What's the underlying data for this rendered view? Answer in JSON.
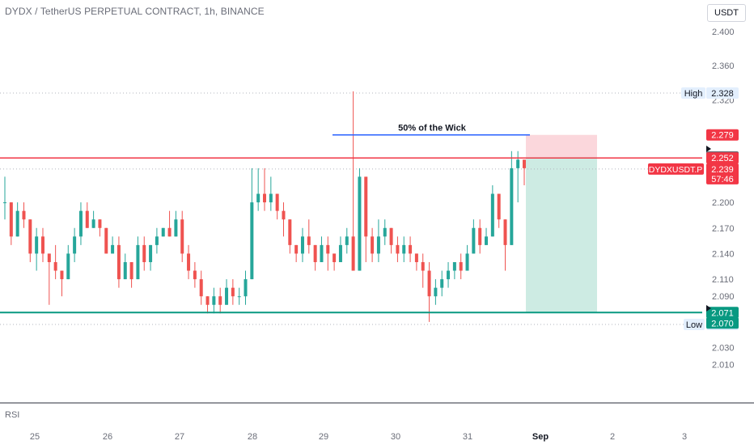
{
  "header": {
    "title": "DYDX / TetherUS PERPETUAL CONTRACT, 1h, BINANCE",
    "currency_button": "USDT"
  },
  "indicator_label": "RSI",
  "colors": {
    "up": "#26a69a",
    "down": "#ef5350",
    "resistance": "#f23645",
    "support": "#089981",
    "wick_line": "#2962ff",
    "stop_zone": "#fbd7dc",
    "target_zone": "#cdebe3",
    "axis_text": "#6a6d78",
    "grid_dot": "#b2b5be"
  },
  "chart_data": {
    "type": "candlestick",
    "symbol": "DYDXUSDT.P",
    "timeframe": "1h",
    "y_ticks": [
      "2.400",
      "2.360",
      "2.320",
      "2.200",
      "2.170",
      "2.140",
      "2.110",
      "2.090",
      "2.030",
      "2.010"
    ],
    "x_ticks": [
      "25",
      "26",
      "27",
      "28",
      "29",
      "30",
      "31",
      "Sep",
      "2",
      "3"
    ],
    "ylim": [
      2.0,
      2.41
    ],
    "annotations": {
      "wick_label": "50% of the Wick",
      "wick_level": 2.279
    },
    "levels": {
      "high": {
        "label": "High",
        "value": "2.328"
      },
      "low": {
        "label": "Low",
        "value": "2.057"
      },
      "resistance": "2.252",
      "support": "2.071",
      "support_alt": "2.070",
      "stop": "2.279",
      "entry": "2.253",
      "current": {
        "symbol": "DYDXUSDT.P",
        "price": "2.239",
        "countdown": "57:46"
      }
    },
    "position": {
      "entry": 2.253,
      "stop": 2.279,
      "target": 2.071
    },
    "candles": [
      [
        2.2,
        2.2,
        2.18,
        2.23
      ],
      [
        2.2,
        2.16,
        2.15,
        2.2
      ],
      [
        2.16,
        2.19,
        2.16,
        2.2
      ],
      [
        2.19,
        2.18,
        2.17,
        2.2
      ],
      [
        2.18,
        2.14,
        2.13,
        2.18
      ],
      [
        2.14,
        2.16,
        2.12,
        2.17
      ],
      [
        2.16,
        2.14,
        2.13,
        2.17
      ],
      [
        2.14,
        2.13,
        2.08,
        2.14
      ],
      [
        2.13,
        2.12,
        2.11,
        2.15
      ],
      [
        2.12,
        2.11,
        2.09,
        2.12
      ],
      [
        2.11,
        2.14,
        2.11,
        2.15
      ],
      [
        2.14,
        2.16,
        2.13,
        2.17
      ],
      [
        2.16,
        2.19,
        2.15,
        2.2
      ],
      [
        2.19,
        2.17,
        2.17,
        2.2
      ],
      [
        2.17,
        2.18,
        2.17,
        2.19
      ],
      [
        2.18,
        2.17,
        2.16,
        2.18
      ],
      [
        2.17,
        2.14,
        2.14,
        2.17
      ],
      [
        2.14,
        2.15,
        2.14,
        2.16
      ],
      [
        2.15,
        2.11,
        2.1,
        2.16
      ],
      [
        2.11,
        2.13,
        2.11,
        2.14
      ],
      [
        2.13,
        2.11,
        2.1,
        2.13
      ],
      [
        2.11,
        2.15,
        2.11,
        2.16
      ],
      [
        2.15,
        2.13,
        2.12,
        2.16
      ],
      [
        2.13,
        2.15,
        2.12,
        2.15
      ],
      [
        2.15,
        2.16,
        2.14,
        2.17
      ],
      [
        2.16,
        2.17,
        2.16,
        2.17
      ],
      [
        2.17,
        2.16,
        2.16,
        2.19
      ],
      [
        2.16,
        2.18,
        2.16,
        2.19
      ],
      [
        2.18,
        2.14,
        2.13,
        2.19
      ],
      [
        2.14,
        2.12,
        2.11,
        2.15
      ],
      [
        2.12,
        2.11,
        2.1,
        2.13
      ],
      [
        2.11,
        2.09,
        2.08,
        2.12
      ],
      [
        2.09,
        2.08,
        2.07,
        2.09
      ],
      [
        2.08,
        2.09,
        2.07,
        2.1
      ],
      [
        2.09,
        2.08,
        2.07,
        2.1
      ],
      [
        2.08,
        2.1,
        2.08,
        2.11
      ],
      [
        2.1,
        2.09,
        2.08,
        2.11
      ],
      [
        2.09,
        2.09,
        2.08,
        2.1
      ],
      [
        2.09,
        2.11,
        2.08,
        2.12
      ],
      [
        2.11,
        2.2,
        2.11,
        2.24
      ],
      [
        2.2,
        2.21,
        2.19,
        2.24
      ],
      [
        2.21,
        2.2,
        2.19,
        2.24
      ],
      [
        2.2,
        2.21,
        2.19,
        2.23
      ],
      [
        2.21,
        2.19,
        2.18,
        2.21
      ],
      [
        2.19,
        2.18,
        2.16,
        2.2
      ],
      [
        2.18,
        2.15,
        2.14,
        2.18
      ],
      [
        2.15,
        2.14,
        2.13,
        2.15
      ],
      [
        2.14,
        2.16,
        2.13,
        2.17
      ],
      [
        2.16,
        2.15,
        2.14,
        2.18
      ],
      [
        2.15,
        2.13,
        2.12,
        2.15
      ],
      [
        2.13,
        2.15,
        2.13,
        2.16
      ],
      [
        2.15,
        2.14,
        2.12,
        2.16
      ],
      [
        2.14,
        2.13,
        2.12,
        2.14
      ],
      [
        2.13,
        2.15,
        2.13,
        2.16
      ],
      [
        2.15,
        2.16,
        2.14,
        2.17
      ],
      [
        2.16,
        2.12,
        2.12,
        2.33
      ],
      [
        2.12,
        2.23,
        2.12,
        2.24
      ],
      [
        2.23,
        2.16,
        2.13,
        2.23
      ],
      [
        2.16,
        2.14,
        2.13,
        2.17
      ],
      [
        2.14,
        2.16,
        2.13,
        2.18
      ],
      [
        2.16,
        2.17,
        2.15,
        2.18
      ],
      [
        2.17,
        2.15,
        2.14,
        2.17
      ],
      [
        2.15,
        2.14,
        2.13,
        2.16
      ],
      [
        2.14,
        2.15,
        2.13,
        2.16
      ],
      [
        2.15,
        2.14,
        2.13,
        2.16
      ],
      [
        2.14,
        2.13,
        2.12,
        2.14
      ],
      [
        2.13,
        2.12,
        2.1,
        2.14
      ],
      [
        2.12,
        2.09,
        2.06,
        2.13
      ],
      [
        2.09,
        2.1,
        2.08,
        2.11
      ],
      [
        2.1,
        2.11,
        2.09,
        2.12
      ],
      [
        2.11,
        2.12,
        2.1,
        2.13
      ],
      [
        2.12,
        2.13,
        2.11,
        2.13
      ],
      [
        2.13,
        2.12,
        2.11,
        2.14
      ],
      [
        2.12,
        2.14,
        2.12,
        2.15
      ],
      [
        2.14,
        2.17,
        2.14,
        2.18
      ],
      [
        2.17,
        2.15,
        2.14,
        2.18
      ],
      [
        2.15,
        2.16,
        2.15,
        2.17
      ],
      [
        2.16,
        2.21,
        2.16,
        2.22
      ],
      [
        2.21,
        2.18,
        2.17,
        2.21
      ],
      [
        2.18,
        2.15,
        2.12,
        2.18
      ],
      [
        2.15,
        2.24,
        2.15,
        2.26
      ],
      [
        2.24,
        2.25,
        2.2,
        2.26
      ],
      [
        2.25,
        2.24,
        2.22,
        2.25
      ]
    ]
  }
}
